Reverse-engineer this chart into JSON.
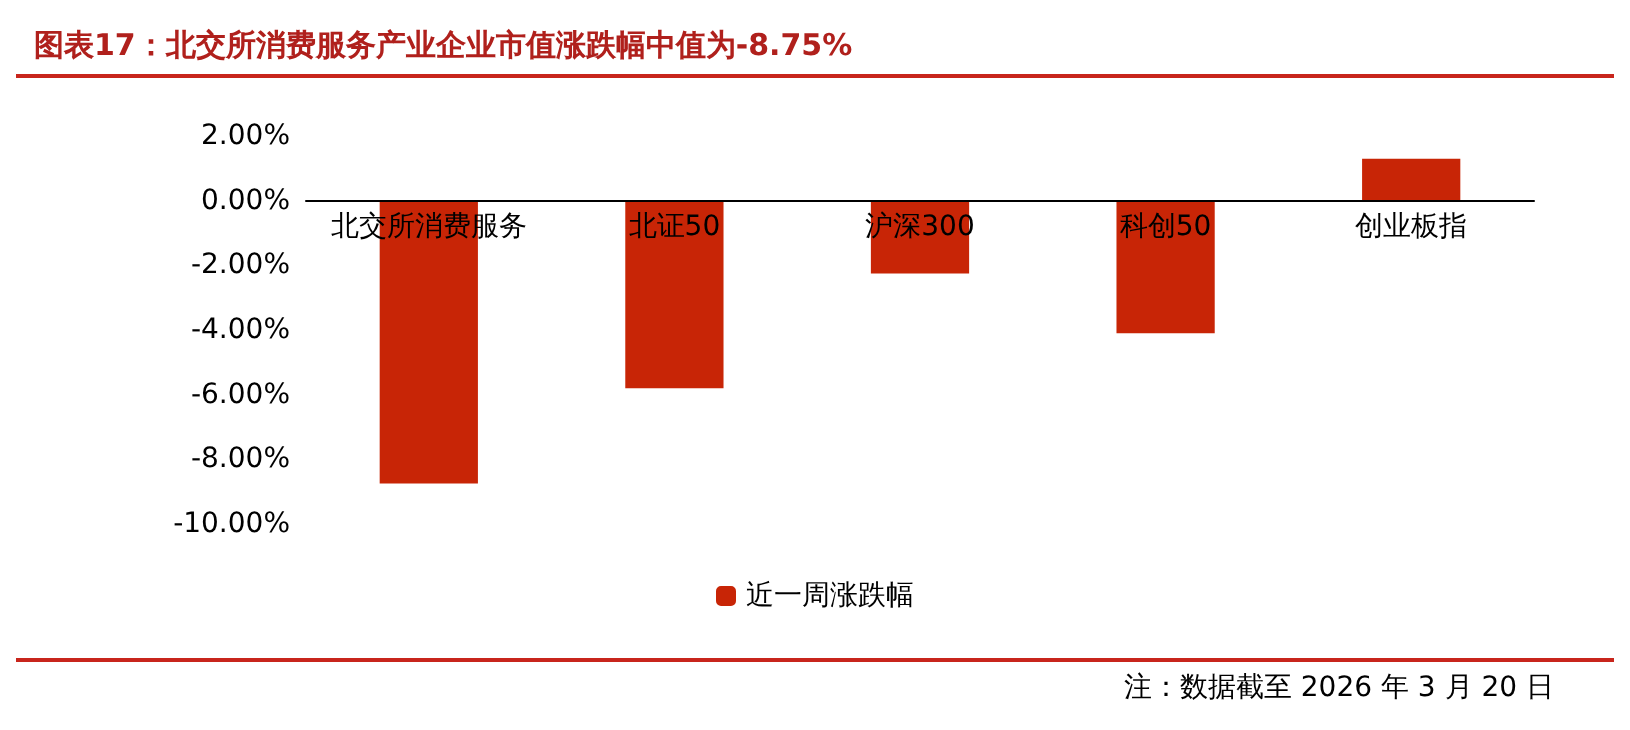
{
  "chart_data": {
    "type": "bar",
    "title": "图表17：北交所消费服务产业企业市值涨跌幅中值为-8.75%",
    "categories": [
      "北交所消费服务",
      "北证50",
      "沪深300",
      "科创50",
      "创业板指"
    ],
    "series": [
      {
        "name": "近一周涨跌幅",
        "color": "#c82506",
        "values": [
          -8.75,
          -5.8,
          -2.25,
          -4.1,
          1.3
        ]
      }
    ],
    "ylim": [
      -10,
      2
    ],
    "yticks": [
      {
        "value": 2,
        "label": "2.00%"
      },
      {
        "value": 0,
        "label": "0.00%"
      },
      {
        "value": -2,
        "label": "-2.00%"
      },
      {
        "value": -4,
        "label": "-4.00%"
      },
      {
        "value": -6,
        "label": "-6.00%"
      },
      {
        "value": -8,
        "label": "-8.00%"
      },
      {
        "value": -10,
        "label": "-10.00%"
      }
    ],
    "grid": false,
    "legend": "bottom",
    "annotations": [
      "注：数据截至 2026 年 3 月 20 日"
    ]
  }
}
